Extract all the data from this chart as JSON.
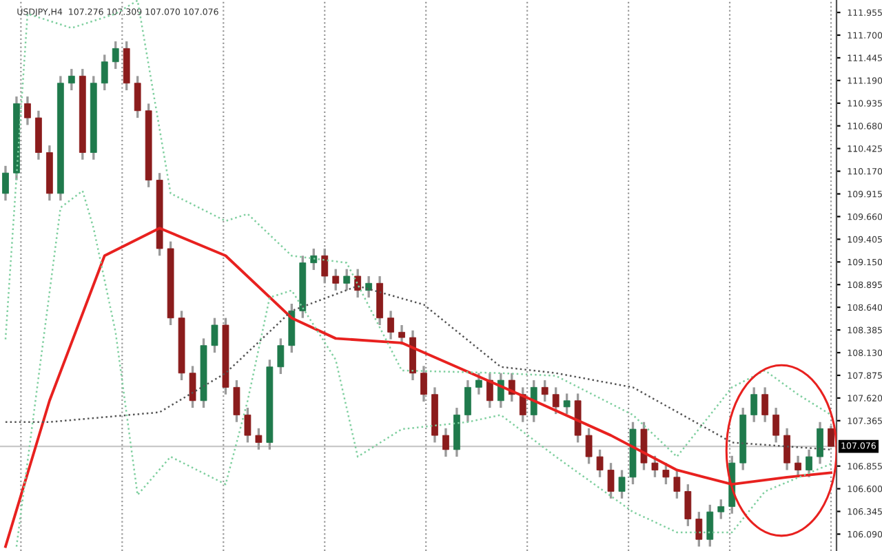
{
  "chart_data": {
    "type": "candlestick",
    "annotations": [
      "USDJPY,H4  107.276 107.309 107.070 107.076"
    ],
    "categories": [
      null,
      null,
      null,
      null,
      null,
      null,
      null,
      null,
      null,
      null,
      null,
      null,
      null,
      null,
      null,
      null,
      null,
      null,
      null,
      null,
      null,
      null,
      null,
      null,
      null,
      null,
      null,
      null,
      null,
      null,
      null,
      null,
      null,
      null,
      null,
      null,
      null,
      null,
      null,
      null,
      null,
      null,
      null,
      null,
      null,
      null,
      null,
      null,
      null,
      null,
      null,
      null,
      null,
      null,
      null,
      null,
      null,
      null,
      null,
      null,
      null,
      null,
      null,
      null,
      null,
      null,
      null,
      null,
      null,
      null,
      null,
      null,
      null,
      null,
      null,
      null
    ],
    "ohlc": [
      [
        109.92,
        110.23,
        109.84,
        110.15
      ],
      [
        110.15,
        111.01,
        110.07,
        110.93
      ],
      [
        110.93,
        111.01,
        110.69,
        110.77
      ],
      [
        110.77,
        110.85,
        110.3,
        110.38
      ],
      [
        110.38,
        110.46,
        109.84,
        109.92
      ],
      [
        109.92,
        111.24,
        109.84,
        111.16
      ],
      [
        111.16,
        111.32,
        111.08,
        111.24
      ],
      [
        111.24,
        111.32,
        110.3,
        110.38
      ],
      [
        110.38,
        111.24,
        110.3,
        111.16
      ],
      [
        111.16,
        111.48,
        111.08,
        111.4
      ],
      [
        111.4,
        111.63,
        111.32,
        111.55
      ],
      [
        111.55,
        111.63,
        111.08,
        111.16
      ],
      [
        111.16,
        111.24,
        110.77,
        110.85
      ],
      [
        110.85,
        110.93,
        109.99,
        110.07
      ],
      [
        110.07,
        110.15,
        109.22,
        109.3
      ],
      [
        109.3,
        109.38,
        108.44,
        108.52
      ],
      [
        108.52,
        108.6,
        107.82,
        107.9
      ],
      [
        107.9,
        107.98,
        107.51,
        107.59
      ],
      [
        107.59,
        108.29,
        107.51,
        108.21
      ],
      [
        108.21,
        108.52,
        108.13,
        108.44
      ],
      [
        108.44,
        108.52,
        107.66,
        107.74
      ],
      [
        107.74,
        107.82,
        107.35,
        107.43
      ],
      [
        107.43,
        107.51,
        107.12,
        107.2
      ],
      [
        107.2,
        107.28,
        107.04,
        107.12
      ],
      [
        107.12,
        108.05,
        107.04,
        107.97
      ],
      [
        107.97,
        108.29,
        107.89,
        108.21
      ],
      [
        108.21,
        108.68,
        108.13,
        108.6
      ],
      [
        108.6,
        109.22,
        108.52,
        109.14
      ],
      [
        109.14,
        109.3,
        109.06,
        109.22
      ],
      [
        109.22,
        109.3,
        108.91,
        108.99
      ],
      [
        108.99,
        109.07,
        108.83,
        108.91
      ],
      [
        108.91,
        109.07,
        108.83,
        108.99
      ],
      [
        108.99,
        109.07,
        108.75,
        108.83
      ],
      [
        108.83,
        108.99,
        108.75,
        108.91
      ],
      [
        108.91,
        108.99,
        108.44,
        108.52
      ],
      [
        108.52,
        108.6,
        108.28,
        108.36
      ],
      [
        108.36,
        108.44,
        108.22,
        108.3
      ],
      [
        108.3,
        108.38,
        107.82,
        107.9
      ],
      [
        107.9,
        107.98,
        107.58,
        107.66
      ],
      [
        107.66,
        107.74,
        107.12,
        107.2
      ],
      [
        107.2,
        107.28,
        106.96,
        107.04
      ],
      [
        107.04,
        107.51,
        106.96,
        107.43
      ],
      [
        107.43,
        107.82,
        107.35,
        107.74
      ],
      [
        107.74,
        107.9,
        107.66,
        107.82
      ],
      [
        107.82,
        107.9,
        107.51,
        107.59
      ],
      [
        107.59,
        107.9,
        107.51,
        107.82
      ],
      [
        107.82,
        107.9,
        107.58,
        107.66
      ],
      [
        107.66,
        107.74,
        107.35,
        107.43
      ],
      [
        107.43,
        107.82,
        107.35,
        107.74
      ],
      [
        107.74,
        107.82,
        107.58,
        107.66
      ],
      [
        107.66,
        107.74,
        107.44,
        107.52
      ],
      [
        107.52,
        107.67,
        107.44,
        107.59
      ],
      [
        107.59,
        107.67,
        107.12,
        107.2
      ],
      [
        107.2,
        107.28,
        106.88,
        106.96
      ],
      [
        106.96,
        107.04,
        106.73,
        106.81
      ],
      [
        106.81,
        106.89,
        106.49,
        106.57
      ],
      [
        106.57,
        106.81,
        106.49,
        106.73
      ],
      [
        106.73,
        107.35,
        106.65,
        107.27
      ],
      [
        107.27,
        107.35,
        106.81,
        106.89
      ],
      [
        106.89,
        106.97,
        106.73,
        106.81
      ],
      [
        106.81,
        106.89,
        106.65,
        106.73
      ],
      [
        106.73,
        106.81,
        106.49,
        106.57
      ],
      [
        106.57,
        106.65,
        106.18,
        106.26
      ],
      [
        106.26,
        106.34,
        105.95,
        106.03
      ],
      [
        106.03,
        106.42,
        105.95,
        106.34
      ],
      [
        106.34,
        106.48,
        106.26,
        106.4
      ],
      [
        106.4,
        106.97,
        106.32,
        106.89
      ],
      [
        106.89,
        107.51,
        106.81,
        107.43
      ],
      [
        107.43,
        107.74,
        107.35,
        107.66
      ],
      [
        107.66,
        107.74,
        107.35,
        107.43
      ],
      [
        107.43,
        107.51,
        107.12,
        107.2
      ],
      [
        107.2,
        107.28,
        106.81,
        106.89
      ],
      [
        106.89,
        106.97,
        106.73,
        106.81
      ],
      [
        106.81,
        107.04,
        106.73,
        106.96
      ],
      [
        106.96,
        107.35,
        106.88,
        107.276
      ],
      [
        107.276,
        107.309,
        107.07,
        107.076
      ]
    ],
    "series": [
      {
        "type": "line",
        "color": "#e8211f",
        "line_style": "solid",
        "values": [
          105.95,
          null,
          null,
          null,
          107.59,
          null,
          null,
          null,
          null,
          109.22,
          null,
          null,
          null,
          null,
          109.53,
          null,
          null,
          null,
          null,
          null,
          109.22,
          null,
          null,
          null,
          null,
          null,
          108.52,
          null,
          null,
          null,
          108.29,
          null,
          null,
          null,
          null,
          null,
          108.24,
          null,
          null,
          null,
          null,
          107.97,
          null,
          null,
          null,
          null,
          null,
          null,
          107.59,
          null,
          null,
          null,
          null,
          null,
          null,
          107.2,
          null,
          null,
          null,
          null,
          null,
          106.81,
          null,
          null,
          null,
          null,
          106.65,
          null,
          null,
          null,
          null,
          106.73,
          null,
          null,
          null,
          106.78
        ]
      },
      {
        "type": "line",
        "color": "#555555",
        "line_style": "dotted",
        "values": [
          107.35,
          null,
          null,
          null,
          107.35,
          null,
          null,
          null,
          null,
          null,
          null,
          null,
          null,
          null,
          107.46,
          null,
          null,
          null,
          null,
          null,
          107.9,
          null,
          null,
          null,
          null,
          null,
          108.6,
          null,
          null,
          null,
          null,
          null,
          108.88,
          null,
          null,
          null,
          null,
          null,
          108.67,
          null,
          null,
          null,
          null,
          null,
          null,
          107.97,
          null,
          null,
          null,
          null,
          107.9,
          null,
          null,
          null,
          null,
          null,
          null,
          107.74,
          null,
          null,
          null,
          null,
          null,
          null,
          null,
          null,
          107.12,
          null,
          null,
          null,
          null,
          null,
          null,
          null,
          null,
          107.04
        ]
      },
      {
        "type": "line",
        "color": "#7fcf9f",
        "line_style": "dotted",
        "values": [
          108.28,
          null,
          111.94,
          null,
          null,
          null,
          111.78,
          null,
          null,
          null,
          111.94,
          null,
          112.09,
          null,
          null,
          109.92,
          null,
          null,
          null,
          null,
          109.61,
          null,
          109.69,
          null,
          null,
          null,
          109.22,
          null,
          null,
          null,
          null,
          109.14,
          null,
          null,
          null,
          null,
          107.93,
          null,
          null,
          null,
          null,
          null,
          null,
          null,
          null,
          107.9,
          null,
          null,
          null,
          null,
          107.87,
          null,
          null,
          null,
          null,
          null,
          null,
          107.43,
          null,
          null,
          null,
          106.96,
          null,
          null,
          null,
          null,
          107.74,
          null,
          null,
          107.93,
          null,
          null,
          107.66,
          null,
          null,
          107.43
        ]
      },
      {
        "type": "line",
        "color": "#7fcf9f",
        "line_style": "dotted",
        "values": [
          null,
          105.95,
          null,
          null,
          null,
          109.76,
          null,
          109.95,
          109.53,
          null,
          108.36,
          null,
          106.53,
          null,
          null,
          106.96,
          null,
          null,
          null,
          null,
          106.65,
          null,
          107.59,
          null,
          108.75,
          null,
          108.83,
          null,
          null,
          null,
          108.05,
          null,
          106.96,
          null,
          null,
          null,
          107.27,
          null,
          null,
          null,
          null,
          null,
          107.35,
          null,
          null,
          107.43,
          null,
          null,
          null,
          null,
          106.96,
          null,
          null,
          null,
          null,
          null,
          null,
          106.34,
          null,
          null,
          null,
          106.11,
          null,
          null,
          null,
          null,
          106.11,
          null,
          null,
          106.57,
          null,
          null,
          null,
          null,
          null,
          106.88
        ]
      }
    ],
    "ylim": [
      105.9,
      112.095
    ],
    "yticks": [
      111.955,
      {
        "value": 111.7,
        "label": "111.700"
      },
      111.445,
      {
        "value": 111.19,
        "label": "111.190"
      },
      110.935,
      {
        "value": 110.68,
        "label": "110.680"
      },
      110.425,
      {
        "value": 110.17,
        "label": "110.170"
      },
      109.915,
      {
        "value": 109.66,
        "label": "109.660"
      },
      109.405,
      {
        "value": 109.15,
        "label": "109.150"
      },
      108.895,
      {
        "value": 108.64,
        "label": "108.640"
      },
      108.385,
      {
        "value": 108.13,
        "label": "108.130"
      },
      107.875,
      {
        "value": 107.62,
        "label": "107.620"
      },
      107.365,
      106.855,
      {
        "value": 106.6,
        "label": "106.600"
      },
      106.345,
      {
        "value": 106.09,
        "label": "106.090"
      }
    ],
    "ref_lines": [
      {
        "axis": "y",
        "value": 107.076,
        "label": "107.076",
        "color": "#c8c8c8"
      }
    ],
    "tick_labels": "y",
    "grid": "x",
    "legend": false
  }
}
